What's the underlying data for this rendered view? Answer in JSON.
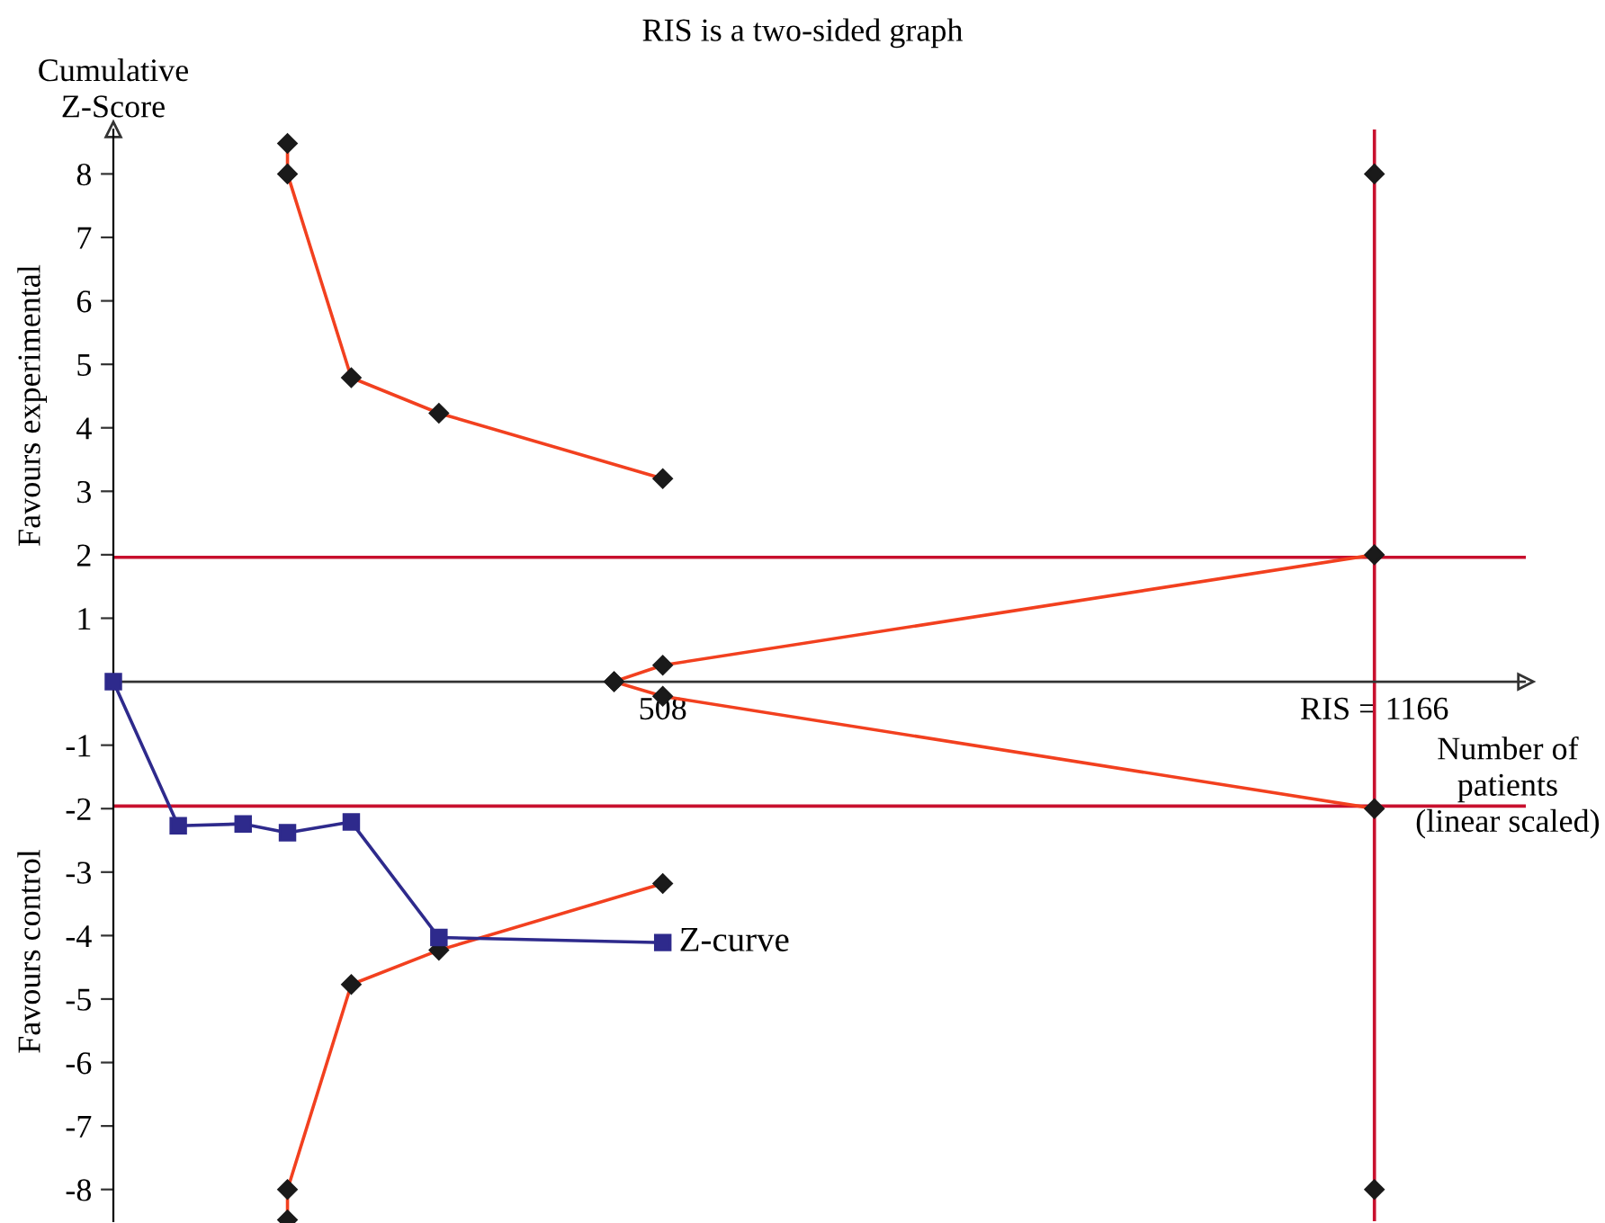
{
  "chart_data": {
    "type": "line",
    "title": "RIS is a two-sided graph",
    "ylabel": "Cumulative\nZ-Score",
    "xlabel": "Number of\npatients\n(linear scaled)",
    "xlim": [
      0,
      1306
    ],
    "xticks": [
      508,
      {
        "value": 1166,
        "label": "RIS = 1166"
      }
    ],
    "ylim": [
      -8.5,
      8.7
    ],
    "yticks": [
      -8,
      -7,
      -6,
      -5,
      -4,
      -3,
      -2,
      -1,
      1,
      2,
      3,
      4,
      5,
      6,
      7,
      8
    ],
    "grid": false,
    "legend": false,
    "line_style": "solid",
    "series": [
      {
        "color": "#f2401f",
        "marker": "diamond",
        "x": [
          161,
          161,
          220,
          301,
          508
        ],
        "values": [
          8.48,
          8.0,
          4.79,
          4.23,
          3.2
        ]
      },
      {
        "color": "#f2401f",
        "marker": "diamond",
        "x": [
          161,
          161,
          220,
          301,
          508
        ],
        "values": [
          -8.48,
          -8.0,
          -4.77,
          -4.23,
          -3.18
        ]
      },
      {
        "color": "#f2401f",
        "marker": "diamond",
        "x": [
          463,
          508,
          1166
        ],
        "values": [
          0,
          0.26,
          2.0
        ]
      },
      {
        "color": "#f2401f",
        "marker": "diamond",
        "x": [
          463,
          508,
          1166
        ],
        "values": [
          0,
          -0.23,
          -2.0
        ]
      },
      {
        "type": "scatter",
        "color": "#1a1a1a",
        "marker": "diamond",
        "x": [
          1166,
          1166
        ],
        "values": [
          8,
          -8
        ]
      },
      {
        "name": "Z-curve",
        "color": "#2e2a8c",
        "marker": "square",
        "x": [
          0,
          60,
          120,
          161,
          220,
          301,
          508
        ],
        "values": [
          0,
          -2.27,
          -2.24,
          -2.38,
          -2.21,
          -4.03,
          -4.11
        ]
      }
    ],
    "ref_lines": [
      {
        "axis": "y",
        "value": 1.96,
        "color": "#c8102e"
      },
      {
        "axis": "y",
        "value": -1.96,
        "color": "#c8102e"
      },
      {
        "axis": "x",
        "value": 1166,
        "color": "#c8102e"
      }
    ],
    "annotations": [
      "Favours experimental",
      "Favours control"
    ]
  }
}
